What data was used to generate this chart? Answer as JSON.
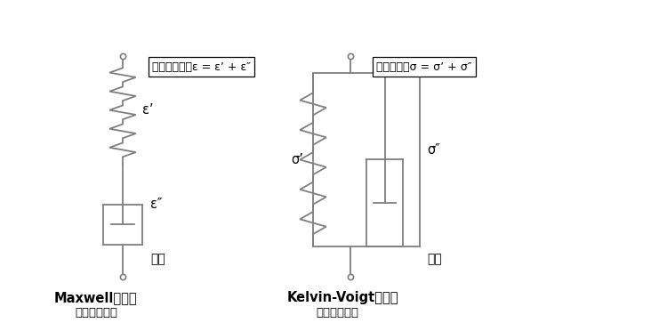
{
  "bg_color": "#ffffff",
  "line_color": "#7f7f7f",
  "text_color": "#000000",
  "maxwell_label": "Maxwellモデル",
  "maxwell_sublabel": "（応力緩和）",
  "maxwell_series_label": "直列",
  "maxwell_equation": "全体ひずみ：ε = ε’ + ε″",
  "maxwell_spring_label": "ε’",
  "maxwell_dashpot_label": "ε″",
  "kv_label": "Kelvin-Voigtモデル",
  "kv_sublabel": "（クリープ）",
  "kv_parallel_label": "並列",
  "kv_equation": "全体応力：σ = σ’ + σ″",
  "kv_spring_label": "σ’",
  "kv_dashpot_label": "σ″",
  "figsize": [
    7.41,
    3.63
  ],
  "dpi": 100
}
